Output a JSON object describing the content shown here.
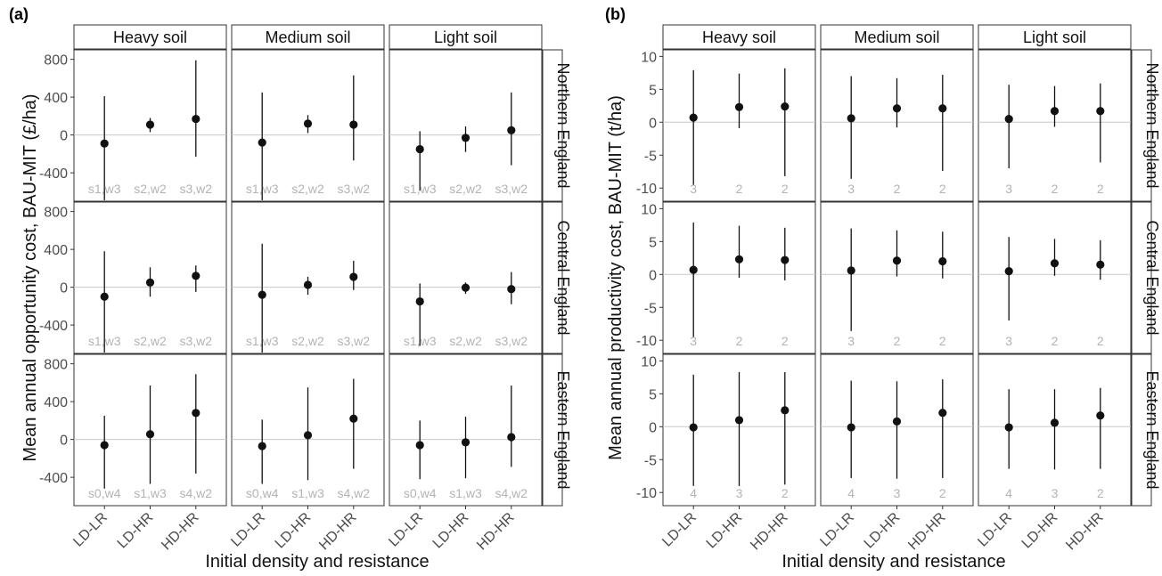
{
  "chart_data": [
    {
      "type": "scatter",
      "panel_label": "(a)",
      "ylabel": "Mean annual opportunity cost, BAU-MIT (£/ha)",
      "xlabel": "Initial density and resistance",
      "facet_columns": [
        "Heavy soil",
        "Medium soil",
        "Light soil"
      ],
      "facet_rows": [
        "Northern England",
        "Central England",
        "Eastern England"
      ],
      "categories": [
        "LD-LR",
        "LD-HR",
        "HD-HR"
      ],
      "ylim": [
        -700,
        900
      ],
      "y_ticks": [
        800,
        400,
        0,
        -400
      ],
      "y_tick_labels": [
        "800",
        "400",
        "0",
        "-400"
      ],
      "reference_line_y": 0,
      "grid": false,
      "colors": {
        "point": "#111111",
        "reference_line": "#c8c8c8",
        "annotation": "#b3b3b3",
        "strip_bg": "#ffffff",
        "border": "#333333"
      },
      "panels": [
        {
          "row": 0,
          "col": 0,
          "points": [
            {
              "x": "LD-LR",
              "y": -90,
              "lower": -690,
              "upper": 410,
              "label": "s1,w3"
            },
            {
              "x": "LD-HR",
              "y": 110,
              "lower": 30,
              "upper": 180,
              "label": "s2,w2"
            },
            {
              "x": "HD-HR",
              "y": 170,
              "lower": -230,
              "upper": 790,
              "label": "s3,w2"
            }
          ]
        },
        {
          "row": 0,
          "col": 1,
          "points": [
            {
              "x": "LD-LR",
              "y": -80,
              "lower": -690,
              "upper": 450,
              "label": "s1,w3"
            },
            {
              "x": "LD-HR",
              "y": 120,
              "lower": 20,
              "upper": 210,
              "label": "s2,w2"
            },
            {
              "x": "HD-HR",
              "y": 110,
              "lower": -270,
              "upper": 630,
              "label": "s3,w2"
            }
          ]
        },
        {
          "row": 0,
          "col": 2,
          "points": [
            {
              "x": "LD-LR",
              "y": -150,
              "lower": -590,
              "upper": 40,
              "label": "s1,w3"
            },
            {
              "x": "LD-HR",
              "y": -30,
              "lower": -180,
              "upper": 90,
              "label": "s2,w2"
            },
            {
              "x": "HD-HR",
              "y": 50,
              "lower": -320,
              "upper": 450,
              "label": "s3,w2"
            }
          ]
        },
        {
          "row": 1,
          "col": 0,
          "points": [
            {
              "x": "LD-LR",
              "y": -100,
              "lower": -690,
              "upper": 380,
              "label": "s1,w3"
            },
            {
              "x": "LD-HR",
              "y": 50,
              "lower": -100,
              "upper": 210,
              "label": "s2,w2"
            },
            {
              "x": "HD-HR",
              "y": 120,
              "lower": -50,
              "upper": 230,
              "label": "s3,w2"
            }
          ]
        },
        {
          "row": 1,
          "col": 1,
          "points": [
            {
              "x": "LD-LR",
              "y": -80,
              "lower": -690,
              "upper": 460,
              "label": "s1,w3"
            },
            {
              "x": "LD-HR",
              "y": 25,
              "lower": -80,
              "upper": 110,
              "label": "s2,w2"
            },
            {
              "x": "HD-HR",
              "y": 110,
              "lower": -30,
              "upper": 280,
              "label": "s3,w2"
            }
          ]
        },
        {
          "row": 1,
          "col": 2,
          "points": [
            {
              "x": "LD-LR",
              "y": -150,
              "lower": -620,
              "upper": 40,
              "label": "s1,w3"
            },
            {
              "x": "LD-HR",
              "y": -5,
              "lower": -70,
              "upper": 50,
              "label": "s2,w2"
            },
            {
              "x": "HD-HR",
              "y": -20,
              "lower": -180,
              "upper": 160,
              "label": "s3,w2"
            }
          ]
        },
        {
          "row": 2,
          "col": 0,
          "points": [
            {
              "x": "LD-LR",
              "y": -60,
              "lower": -520,
              "upper": 250,
              "label": "s0,w4"
            },
            {
              "x": "LD-HR",
              "y": 55,
              "lower": -470,
              "upper": 570,
              "label": "s1,w3"
            },
            {
              "x": "HD-HR",
              "y": 280,
              "lower": -360,
              "upper": 690,
              "label": "s4,w2"
            }
          ]
        },
        {
          "row": 2,
          "col": 1,
          "points": [
            {
              "x": "LD-LR",
              "y": -70,
              "lower": -470,
              "upper": 210,
              "label": "s0,w4"
            },
            {
              "x": "LD-HR",
              "y": 45,
              "lower": -430,
              "upper": 550,
              "label": "s1,w3"
            },
            {
              "x": "HD-HR",
              "y": 220,
              "lower": -310,
              "upper": 640,
              "label": "s4,w2"
            }
          ]
        },
        {
          "row": 2,
          "col": 2,
          "points": [
            {
              "x": "LD-LR",
              "y": -60,
              "lower": -420,
              "upper": 200,
              "label": "s0,w4"
            },
            {
              "x": "LD-HR",
              "y": -30,
              "lower": -410,
              "upper": 240,
              "label": "s1,w3"
            },
            {
              "x": "HD-HR",
              "y": 25,
              "lower": -290,
              "upper": 570,
              "label": "s4,w2"
            }
          ]
        }
      ]
    },
    {
      "type": "scatter",
      "panel_label": "(b)",
      "ylabel": "Mean annual productivity cost, BAU-MIT (t/ha)",
      "xlabel": "Initial density and resistance",
      "facet_columns": [
        "Heavy soil",
        "Medium soil",
        "Light soil"
      ],
      "facet_rows": [
        "Northern England",
        "Central England",
        "Eastern England"
      ],
      "categories": [
        "LD-LR",
        "LD-HR",
        "HD-HR"
      ],
      "ylim": [
        -12,
        11
      ],
      "y_ticks": [
        10,
        5,
        0,
        -5,
        -10
      ],
      "y_tick_labels": [
        "10",
        "5",
        "0",
        "-5",
        "-10"
      ],
      "reference_line_y": 0,
      "grid": false,
      "colors": {
        "point": "#111111",
        "reference_line": "#c8c8c8",
        "annotation": "#b3b3b3",
        "strip_bg": "#ffffff",
        "border": "#333333"
      },
      "panels": [
        {
          "row": 0,
          "col": 0,
          "points": [
            {
              "x": "LD-LR",
              "y": 0.7,
              "lower": -9.5,
              "upper": 7.9,
              "label": "3"
            },
            {
              "x": "LD-HR",
              "y": 2.3,
              "lower": -0.9,
              "upper": 7.4,
              "label": "2"
            },
            {
              "x": "HD-HR",
              "y": 2.4,
              "lower": -8.2,
              "upper": 8.2,
              "label": "2"
            }
          ]
        },
        {
          "row": 0,
          "col": 1,
          "points": [
            {
              "x": "LD-LR",
              "y": 0.6,
              "lower": -8.6,
              "upper": 7.0,
              "label": "3"
            },
            {
              "x": "LD-HR",
              "y": 2.1,
              "lower": -0.8,
              "upper": 6.7,
              "label": "2"
            },
            {
              "x": "HD-HR",
              "y": 2.1,
              "lower": -7.4,
              "upper": 7.2,
              "label": "2"
            }
          ]
        },
        {
          "row": 0,
          "col": 2,
          "points": [
            {
              "x": "LD-LR",
              "y": 0.5,
              "lower": -7.0,
              "upper": 5.7,
              "label": "3"
            },
            {
              "x": "LD-HR",
              "y": 1.7,
              "lower": -0.7,
              "upper": 5.5,
              "label": "2"
            },
            {
              "x": "HD-HR",
              "y": 1.7,
              "lower": -6.1,
              "upper": 5.9,
              "label": "2"
            }
          ]
        },
        {
          "row": 1,
          "col": 0,
          "points": [
            {
              "x": "LD-LR",
              "y": 0.7,
              "lower": -9.5,
              "upper": 7.9,
              "label": "3"
            },
            {
              "x": "LD-HR",
              "y": 2.3,
              "lower": -0.5,
              "upper": 7.4,
              "label": "2"
            },
            {
              "x": "HD-HR",
              "y": 2.2,
              "lower": -0.9,
              "upper": 7.1,
              "label": "2"
            }
          ]
        },
        {
          "row": 1,
          "col": 1,
          "points": [
            {
              "x": "LD-LR",
              "y": 0.6,
              "lower": -8.6,
              "upper": 7.0,
              "label": "3"
            },
            {
              "x": "LD-HR",
              "y": 2.1,
              "lower": -0.3,
              "upper": 6.7,
              "label": "2"
            },
            {
              "x": "HD-HR",
              "y": 2.0,
              "lower": -0.6,
              "upper": 6.5,
              "label": "2"
            }
          ]
        },
        {
          "row": 1,
          "col": 2,
          "points": [
            {
              "x": "LD-LR",
              "y": 0.5,
              "lower": -7.0,
              "upper": 5.7,
              "label": "3"
            },
            {
              "x": "LD-HR",
              "y": 1.7,
              "lower": -0.2,
              "upper": 5.4,
              "label": "2"
            },
            {
              "x": "HD-HR",
              "y": 1.5,
              "lower": -0.8,
              "upper": 5.2,
              "label": "2"
            }
          ]
        },
        {
          "row": 2,
          "col": 0,
          "points": [
            {
              "x": "LD-LR",
              "y": -0.1,
              "lower": -9.0,
              "upper": 7.9,
              "label": "4"
            },
            {
              "x": "LD-HR",
              "y": 1.0,
              "lower": -9.0,
              "upper": 8.3,
              "label": "3"
            },
            {
              "x": "HD-HR",
              "y": 2.5,
              "lower": -8.8,
              "upper": 8.3,
              "label": "2"
            }
          ]
        },
        {
          "row": 2,
          "col": 1,
          "points": [
            {
              "x": "LD-LR",
              "y": -0.1,
              "lower": -7.8,
              "upper": 7.0,
              "label": "4"
            },
            {
              "x": "LD-HR",
              "y": 0.8,
              "lower": -7.9,
              "upper": 6.9,
              "label": "3"
            },
            {
              "x": "HD-HR",
              "y": 2.1,
              "lower": -7.8,
              "upper": 7.2,
              "label": "2"
            }
          ]
        },
        {
          "row": 2,
          "col": 2,
          "points": [
            {
              "x": "LD-LR",
              "y": -0.1,
              "lower": -6.4,
              "upper": 5.7,
              "label": "4"
            },
            {
              "x": "LD-HR",
              "y": 0.6,
              "lower": -6.5,
              "upper": 5.7,
              "label": "3"
            },
            {
              "x": "HD-HR",
              "y": 1.7,
              "lower": -6.4,
              "upper": 5.9,
              "label": "2"
            }
          ]
        }
      ]
    }
  ]
}
